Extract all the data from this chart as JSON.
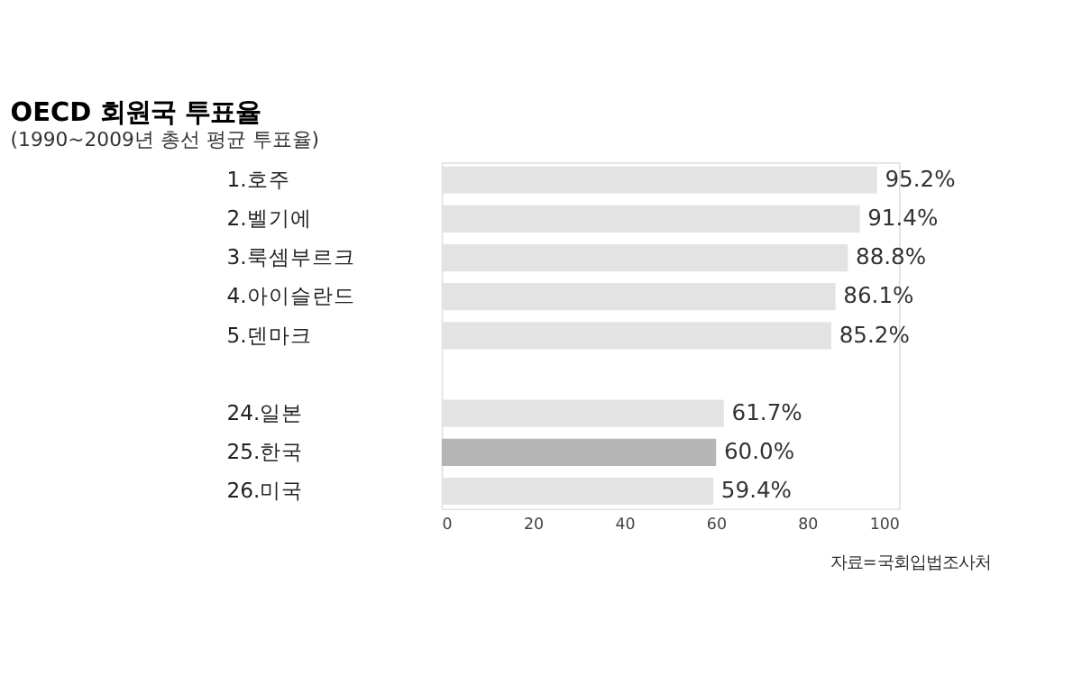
{
  "chart_data": {
    "type": "bar",
    "orientation": "horizontal",
    "title": "OECD 회원국 투표율",
    "subtitle": "(1990~2009년 총선 평균 투표율)",
    "categories": [
      "1.호주",
      "2.벨기에",
      "3.룩셈부르크",
      "4.아이슬란드",
      "5.덴마크",
      null,
      "24.일본",
      "25.한국",
      "26.미국"
    ],
    "values": [
      95.2,
      91.4,
      88.8,
      86.1,
      85.2,
      null,
      61.7,
      60.0,
      59.4
    ],
    "colors": [
      "#e3e3e3",
      "#e3e3e3",
      "#e3e3e3",
      "#e3e3e3",
      "#e3e3e3",
      "#e3e3e3",
      "#e3e3e3",
      "#b5b5b5",
      "#e3e3e3"
    ],
    "value_labels": [
      "95.2%",
      "91.4%",
      "88.8%",
      "86.1%",
      "85.2%",
      null,
      "61.7%",
      "60.0%",
      "59.4%"
    ],
    "xlim": [
      0,
      100
    ],
    "xticks": [
      0,
      20,
      40,
      60,
      80,
      100
    ],
    "grid": false,
    "annotations": [
      "자료=국회입법조사처"
    ]
  }
}
